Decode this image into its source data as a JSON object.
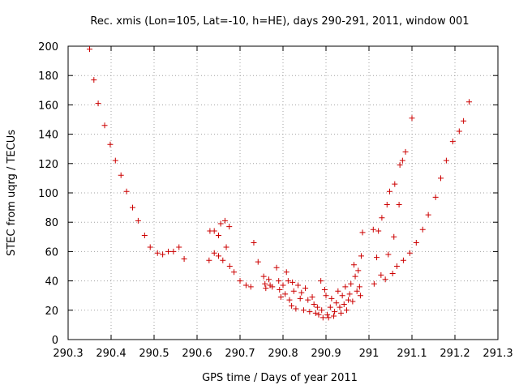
{
  "chart_data": {
    "type": "scatter",
    "title": "Rec. xmis (Lon=105, Lat=-10, h=HE), days 290-291, 2011, window 001",
    "xlabel": "GPS time / Days of year 2011",
    "ylabel": "STEC from uqrg / TECUs",
    "xlim": [
      290.3,
      291.3
    ],
    "ylim": [
      0,
      200
    ],
    "xticks": [
      290.3,
      290.4,
      290.5,
      290.6,
      290.7,
      290.8,
      290.9,
      291,
      291.1,
      291.2,
      291.3
    ],
    "xtick_labels": [
      "290.3",
      "290.4",
      "290.5",
      "290.6",
      "290.7",
      "290.8",
      "290.9",
      "291",
      "291.1",
      "291.2",
      "291.3"
    ],
    "yticks": [
      0,
      20,
      40,
      60,
      80,
      100,
      120,
      140,
      160,
      180,
      200
    ],
    "ytick_labels": [
      "0",
      "20",
      "40",
      "60",
      "80",
      "100",
      "120",
      "140",
      "160",
      "180",
      "200"
    ],
    "grid": true,
    "marker": "+",
    "color": "#cc0000",
    "series": [
      {
        "name": "STEC",
        "points": [
          [
            290.35,
            198
          ],
          [
            290.36,
            177
          ],
          [
            290.37,
            161
          ],
          [
            290.385,
            146
          ],
          [
            290.398,
            133
          ],
          [
            290.41,
            122
          ],
          [
            290.423,
            112
          ],
          [
            290.436,
            101
          ],
          [
            290.45,
            90
          ],
          [
            290.463,
            81
          ],
          [
            290.478,
            71
          ],
          [
            290.491,
            63
          ],
          [
            290.508,
            59
          ],
          [
            290.52,
            58
          ],
          [
            290.533,
            60
          ],
          [
            290.545,
            60
          ],
          [
            290.558,
            63
          ],
          [
            290.57,
            55
          ],
          [
            290.63,
            74
          ],
          [
            290.64,
            74
          ],
          [
            290.65,
            71
          ],
          [
            290.655,
            79
          ],
          [
            290.665,
            81
          ],
          [
            290.675,
            77
          ],
          [
            290.628,
            54
          ],
          [
            290.64,
            59
          ],
          [
            290.65,
            57
          ],
          [
            290.66,
            54
          ],
          [
            290.668,
            63
          ],
          [
            290.676,
            50
          ],
          [
            290.686,
            46
          ],
          [
            290.7,
            40
          ],
          [
            290.714,
            37
          ],
          [
            290.725,
            36
          ],
          [
            290.732,
            66
          ],
          [
            290.742,
            53
          ],
          [
            290.755,
            43
          ],
          [
            290.758,
            38
          ],
          [
            290.76,
            35
          ],
          [
            290.767,
            41
          ],
          [
            290.77,
            37
          ],
          [
            290.775,
            36
          ],
          [
            290.785,
            49
          ],
          [
            290.79,
            40
          ],
          [
            290.792,
            34
          ],
          [
            290.795,
            29
          ],
          [
            290.8,
            37
          ],
          [
            290.805,
            31
          ],
          [
            290.808,
            46
          ],
          [
            290.812,
            40
          ],
          [
            290.815,
            27
          ],
          [
            290.82,
            23
          ],
          [
            290.822,
            39
          ],
          [
            290.825,
            33
          ],
          [
            290.83,
            21
          ],
          [
            290.835,
            37
          ],
          [
            290.84,
            28
          ],
          [
            290.843,
            32
          ],
          [
            290.848,
            20
          ],
          [
            290.852,
            35
          ],
          [
            290.858,
            27
          ],
          [
            290.862,
            19
          ],
          [
            290.868,
            29
          ],
          [
            290.872,
            24
          ],
          [
            290.876,
            18
          ],
          [
            290.88,
            22
          ],
          [
            290.883,
            17
          ],
          [
            290.888,
            40
          ],
          [
            290.89,
            20
          ],
          [
            290.893,
            15
          ],
          [
            290.897,
            34
          ],
          [
            290.9,
            30
          ],
          [
            290.903,
            17
          ],
          [
            290.906,
            15
          ],
          [
            290.91,
            22
          ],
          [
            290.913,
            28
          ],
          [
            290.918,
            16
          ],
          [
            290.92,
            19
          ],
          [
            290.924,
            25
          ],
          [
            290.928,
            33
          ],
          [
            290.932,
            22
          ],
          [
            290.935,
            18
          ],
          [
            290.938,
            30
          ],
          [
            290.942,
            24
          ],
          [
            290.945,
            36
          ],
          [
            290.948,
            20
          ],
          [
            290.952,
            27
          ],
          [
            290.955,
            31
          ],
          [
            290.958,
            38
          ],
          [
            290.962,
            26
          ],
          [
            290.965,
            51
          ],
          [
            290.968,
            43
          ],
          [
            290.972,
            33
          ],
          [
            290.975,
            47
          ],
          [
            290.978,
            36
          ],
          [
            290.98,
            30
          ],
          [
            290.982,
            57
          ],
          [
            290.985,
            73
          ],
          [
            291.01,
            75
          ],
          [
            291.012,
            38
          ],
          [
            291.018,
            56
          ],
          [
            291.022,
            74
          ],
          [
            291.028,
            44
          ],
          [
            291.03,
            83
          ],
          [
            291.038,
            41
          ],
          [
            291.042,
            92
          ],
          [
            291.045,
            58
          ],
          [
            291.048,
            101
          ],
          [
            291.055,
            45
          ],
          [
            291.058,
            70
          ],
          [
            291.06,
            106
          ],
          [
            291.065,
            50
          ],
          [
            291.07,
            92
          ],
          [
            291.072,
            119
          ],
          [
            291.078,
            122
          ],
          [
            291.08,
            54
          ],
          [
            291.085,
            128
          ],
          [
            291.095,
            59
          ],
          [
            291.1,
            151
          ],
          [
            291.11,
            66
          ],
          [
            291.125,
            75
          ],
          [
            291.138,
            85
          ],
          [
            291.155,
            97
          ],
          [
            291.167,
            110
          ],
          [
            291.18,
            122
          ],
          [
            291.195,
            135
          ],
          [
            291.21,
            142
          ],
          [
            291.22,
            149
          ],
          [
            291.233,
            162
          ]
        ]
      }
    ]
  }
}
